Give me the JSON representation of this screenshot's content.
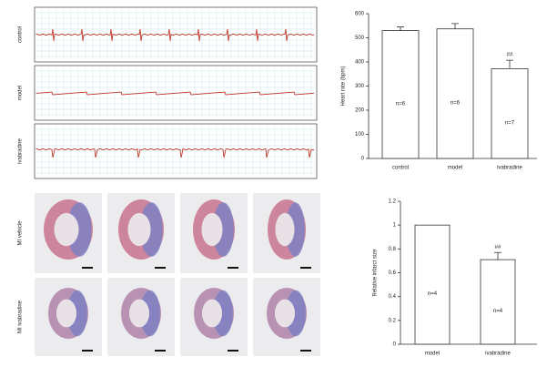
{
  "ecg_labels": [
    "control",
    "model",
    "ivabradine"
  ],
  "histology_labels": [
    "MI vehicle",
    "MI ivabradine"
  ],
  "chart_data": [
    {
      "type": "bar",
      "y_label": "Heart rate (bpm)",
      "categories": [
        "control",
        "model",
        "ivabradine"
      ],
      "values": [
        530,
        537,
        372
      ],
      "errors": [
        15,
        22,
        35
      ],
      "annotations": [
        "n=6",
        "n=6",
        "n=7"
      ],
      "significance": [
        null,
        null,
        "##"
      ],
      "color": "#ffffff",
      "ylim": [
        0,
        600
      ],
      "yticks": [
        0,
        100,
        200,
        300,
        400,
        500,
        600
      ]
    },
    {
      "type": "bar",
      "y_label": "Relative infarct size",
      "categories": [
        "model",
        "ivabradine"
      ],
      "values": [
        1,
        0.71
      ],
      "errors": [
        null,
        0.06
      ],
      "annotations": [
        "n=4",
        "n=4"
      ],
      "significance": [
        null,
        "##"
      ],
      "color": "#ffffff",
      "ylim": [
        0,
        1.2
      ],
      "yticks": [
        0,
        0.2,
        0.4,
        0.6,
        0.8,
        1,
        1.2
      ]
    }
  ]
}
